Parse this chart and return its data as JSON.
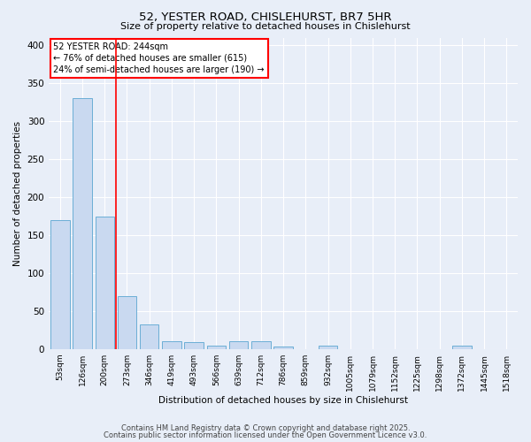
{
  "title1": "52, YESTER ROAD, CHISLEHURST, BR7 5HR",
  "title2": "Size of property relative to detached houses in Chislehurst",
  "xlabel": "Distribution of detached houses by size in Chislehurst",
  "ylabel": "Number of detached properties",
  "categories": [
    "53sqm",
    "126sqm",
    "200sqm",
    "273sqm",
    "346sqm",
    "419sqm",
    "493sqm",
    "566sqm",
    "639sqm",
    "712sqm",
    "786sqm",
    "859sqm",
    "932sqm",
    "1005sqm",
    "1079sqm",
    "1152sqm",
    "1225sqm",
    "1298sqm",
    "1372sqm",
    "1445sqm",
    "1518sqm"
  ],
  "values": [
    170,
    330,
    175,
    70,
    33,
    10,
    9,
    5,
    10,
    10,
    3,
    0,
    5,
    0,
    0,
    0,
    0,
    0,
    5,
    0,
    0
  ],
  "bar_color": "#c9d9f0",
  "bar_edge_color": "#6baed6",
  "red_line_x": 2.5,
  "annotation_title": "52 YESTER ROAD: 244sqm",
  "annotation_line1": "← 76% of detached houses are smaller (615)",
  "annotation_line2": "24% of semi-detached houses are larger (190) →",
  "annotation_box_color": "white",
  "annotation_box_edge": "red",
  "red_line_color": "red",
  "ylim": [
    0,
    410
  ],
  "yticks": [
    0,
    50,
    100,
    150,
    200,
    250,
    300,
    350,
    400
  ],
  "bg_color": "#e8eef8",
  "grid_color": "white",
  "footer1": "Contains HM Land Registry data © Crown copyright and database right 2025.",
  "footer2": "Contains public sector information licensed under the Open Government Licence v3.0."
}
